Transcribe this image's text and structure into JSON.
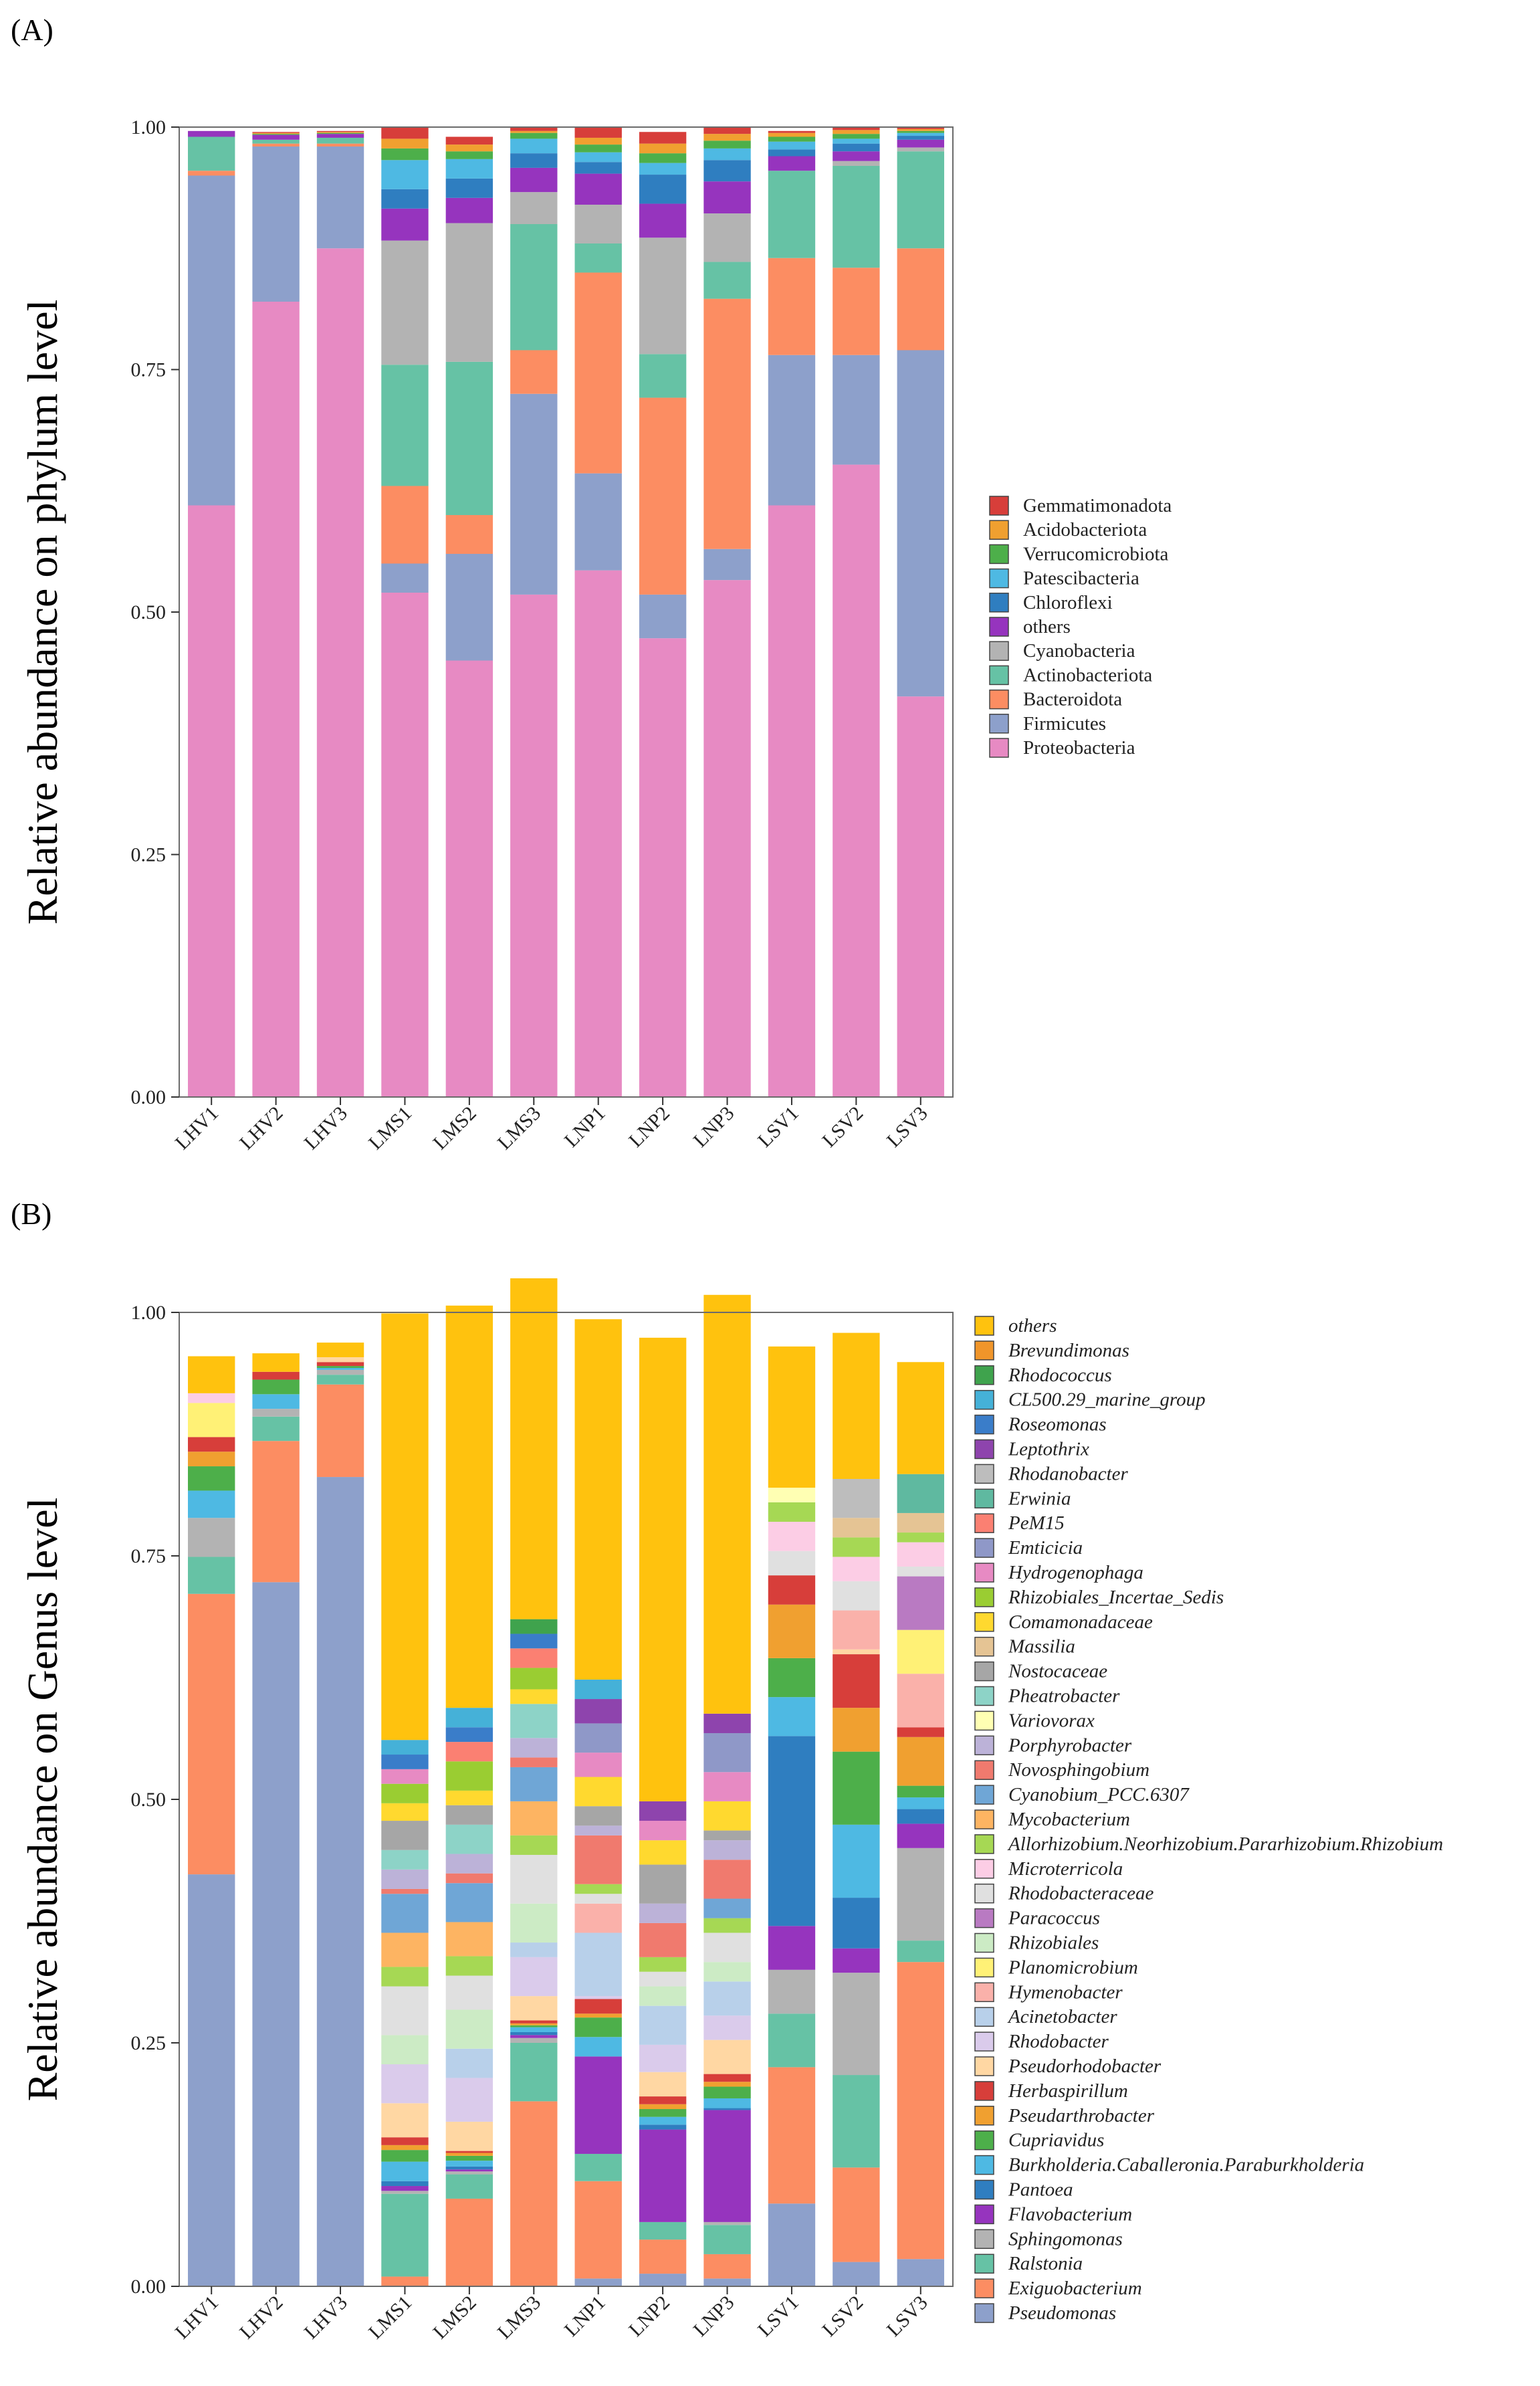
{
  "figure": {
    "panel_a_label": "(A)",
    "panel_b_label": "(B)"
  },
  "chart_data": [
    {
      "type": "bar",
      "stacked": true,
      "panel": "(A)",
      "title": "",
      "xlabel": "",
      "ylabel": "Relative abundance on phylum level",
      "ylim": [
        0,
        1
      ],
      "yticks": [
        "0.00",
        "0.25",
        "0.50",
        "0.75",
        "1.00"
      ],
      "grid": false,
      "legend_position": "right",
      "categories": [
        "LHV1",
        "LHV2",
        "LHV3",
        "LMS1",
        "LMS2",
        "LMS3",
        "LNP1",
        "LNP2",
        "LNP3",
        "LSV1",
        "LSV2",
        "LSV3"
      ],
      "series": [
        {
          "name": "Proteobacteria",
          "color": "#E78AC3",
          "values": [
            0.61,
            0.82,
            0.875,
            0.52,
            0.45,
            0.518,
            0.543,
            0.473,
            0.533,
            0.61,
            0.652,
            0.413
          ]
        },
        {
          "name": "Firmicutes",
          "color": "#8DA0CB",
          "values": [
            0.34,
            0.16,
            0.105,
            0.03,
            0.11,
            0.207,
            0.1,
            0.045,
            0.032,
            0.155,
            0.113,
            0.357
          ]
        },
        {
          "name": "Bacteroidota",
          "color": "#FC8D62",
          "values": [
            0.005,
            0.003,
            0.003,
            0.08,
            0.04,
            0.045,
            0.207,
            0.203,
            0.258,
            0.1,
            0.09,
            0.105
          ]
        },
        {
          "name": "Actinobacteriota",
          "color": "#66C2A5",
          "values": [
            0.035,
            0.004,
            0.006,
            0.125,
            0.158,
            0.13,
            0.03,
            0.045,
            0.038,
            0.09,
            0.105,
            0.1
          ]
        },
        {
          "name": "Cyanobacteria",
          "color": "#B3B3B3",
          "values": [
            0.0,
            0.0,
            0.0,
            0.128,
            0.143,
            0.033,
            0.04,
            0.12,
            0.05,
            0.0,
            0.005,
            0.004
          ]
        },
        {
          "name": "others",
          "color": "#9634BE",
          "values": [
            0.006,
            0.005,
            0.004,
            0.033,
            0.026,
            0.025,
            0.032,
            0.035,
            0.033,
            0.015,
            0.01,
            0.008
          ]
        },
        {
          "name": "Chloroflexi",
          "color": "#2F7EC0",
          "values": [
            0.0,
            0.0,
            0.0,
            0.02,
            0.02,
            0.015,
            0.012,
            0.03,
            0.022,
            0.007,
            0.008,
            0.004
          ]
        },
        {
          "name": "Patescibacteria",
          "color": "#4EB9E3",
          "values": [
            0.0,
            0.0,
            0.0,
            0.03,
            0.02,
            0.015,
            0.01,
            0.012,
            0.012,
            0.008,
            0.005,
            0.003
          ]
        },
        {
          "name": "Verrucomicrobiota",
          "color": "#4DAF4A",
          "values": [
            0.0,
            0.001,
            0.001,
            0.012,
            0.008,
            0.006,
            0.008,
            0.01,
            0.008,
            0.005,
            0.005,
            0.002
          ]
        },
        {
          "name": "Acidobacteriota",
          "color": "#F0A030",
          "values": [
            0.0,
            0.001,
            0.001,
            0.01,
            0.007,
            0.002,
            0.007,
            0.01,
            0.007,
            0.004,
            0.004,
            0.002
          ]
        },
        {
          "name": "Gemmatimonadota",
          "color": "#D73E3A",
          "values": [
            0.0,
            0.001,
            0.001,
            0.012,
            0.008,
            0.004,
            0.011,
            0.012,
            0.007,
            0.002,
            0.003,
            0.002
          ]
        }
      ]
    },
    {
      "type": "bar",
      "stacked": true,
      "panel": "(B)",
      "title": "",
      "xlabel": "",
      "ylabel": "Relative abundance on Genus level",
      "ylim": [
        0,
        1
      ],
      "yticks": [
        "0.00",
        "0.25",
        "0.50",
        "0.75",
        "1.00"
      ],
      "grid": false,
      "legend_position": "right",
      "categories": [
        "LHV1",
        "LHV2",
        "LHV3",
        "LMS1",
        "LMS2",
        "LMS3",
        "LNP1",
        "LNP2",
        "LNP3",
        "LSV1",
        "LSV2",
        "LSV3"
      ],
      "series": [
        {
          "name": "Pseudomonas",
          "color": "#8DA0CB",
          "values": [
            0.423,
            0.723,
            0.831,
            0.0,
            0.0,
            0.0,
            0.008,
            0.013,
            0.008,
            0.085,
            0.025,
            0.028
          ]
        },
        {
          "name": "Exiguobacterium",
          "color": "#FC8D62",
          "values": [
            0.288,
            0.145,
            0.095,
            0.01,
            0.09,
            0.19,
            0.1,
            0.035,
            0.025,
            0.14,
            0.097,
            0.305
          ]
        },
        {
          "name": "Ralstonia",
          "color": "#66C2A5",
          "values": [
            0.038,
            0.025,
            0.01,
            0.085,
            0.025,
            0.06,
            0.028,
            0.018,
            0.03,
            0.055,
            0.095,
            0.022
          ]
        },
        {
          "name": "Sphingomonas",
          "color": "#B3B3B3",
          "values": [
            0.04,
            0.008,
            0.005,
            0.003,
            0.003,
            0.005,
            0.0,
            0.0,
            0.003,
            0.045,
            0.105,
            0.095
          ]
        },
        {
          "name": "Flavobacterium",
          "color": "#9634BE",
          "values": [
            0.0,
            0.0,
            0.0,
            0.005,
            0.002,
            0.003,
            0.1,
            0.095,
            0.115,
            0.045,
            0.025,
            0.025
          ]
        },
        {
          "name": "Pantoea",
          "color": "#2F7EC0",
          "values": [
            0.0,
            0.0,
            0.0,
            0.005,
            0.003,
            0.003,
            0.0,
            0.005,
            0.002,
            0.195,
            0.052,
            0.015
          ]
        },
        {
          "name": "Burkholderia.Caballeronia.Paraburkholderia",
          "color": "#4EB9E3",
          "values": [
            0.028,
            0.015,
            0.002,
            0.02,
            0.006,
            0.005,
            0.02,
            0.008,
            0.01,
            0.04,
            0.075,
            0.012
          ]
        },
        {
          "name": "Cupriavidus",
          "color": "#4DAF4A",
          "values": [
            0.025,
            0.015,
            0.002,
            0.012,
            0.005,
            0.002,
            0.02,
            0.008,
            0.012,
            0.04,
            0.075,
            0.012
          ]
        },
        {
          "name": "Pseudarthrobacter",
          "color": "#F0A030",
          "values": [
            0.015,
            0.0,
            0.0,
            0.005,
            0.003,
            0.002,
            0.004,
            0.005,
            0.005,
            0.055,
            0.045,
            0.05
          ]
        },
        {
          "name": "Herbaspirillum",
          "color": "#D73E3A",
          "values": [
            0.015,
            0.008,
            0.004,
            0.008,
            0.002,
            0.003,
            0.015,
            0.008,
            0.008,
            0.03,
            0.055,
            0.01
          ]
        },
        {
          "name": "Pseudorhodobacter",
          "color": "#FFD7A3",
          "values": [
            0.0,
            0.0,
            0.005,
            0.035,
            0.03,
            0.025,
            0.0,
            0.025,
            0.035,
            0.0,
            0.005,
            0.0
          ]
        },
        {
          "name": "Rhodobacter",
          "color": "#DACBEB",
          "values": [
            0.0,
            0.0,
            0.0,
            0.04,
            0.045,
            0.04,
            0.003,
            0.028,
            0.025,
            0.0,
            0.0,
            0.0
          ]
        },
        {
          "name": "Acinetobacter",
          "color": "#B8D0EA",
          "values": [
            0.0,
            0.0,
            0.0,
            0.0,
            0.03,
            0.015,
            0.065,
            0.04,
            0.035,
            0.0,
            0.0,
            0.0
          ]
        },
        {
          "name": "Hymenobacter",
          "color": "#FAB1AA",
          "values": [
            0.0,
            0.0,
            0.0,
            0.0,
            0.0,
            0.0,
            0.03,
            0.0,
            0.0,
            0.0,
            0.04,
            0.055
          ]
        },
        {
          "name": "Planomicrobium",
          "color": "#FFF176",
          "values": [
            0.035,
            0.0,
            0.0,
            0.0,
            0.0,
            0.0,
            0.0,
            0.0,
            0.0,
            0.0,
            0.0,
            0.045
          ]
        },
        {
          "name": "Rhizobiales",
          "color": "#CCEBC5",
          "values": [
            0.0,
            0.0,
            0.0,
            0.03,
            0.04,
            0.04,
            0.0,
            0.02,
            0.02,
            0.0,
            0.0,
            0.0
          ]
        },
        {
          "name": "Paracoccus",
          "color": "#B97AC2",
          "values": [
            0.0,
            0.0,
            0.0,
            0.0,
            0.0,
            0.0,
            0.0,
            0.0,
            0.0,
            0.0,
            0.0,
            0.055
          ]
        },
        {
          "name": "Rhodobacteraceae",
          "color": "#E0E0E0",
          "values": [
            0.0,
            0.0,
            0.0,
            0.05,
            0.035,
            0.05,
            0.01,
            0.015,
            0.03,
            0.025,
            0.03,
            0.01
          ]
        },
        {
          "name": "Microterricola",
          "color": "#FCCDE5",
          "values": [
            0.01,
            0.0,
            0.0,
            0.0,
            0.0,
            0.0,
            0.0,
            0.0,
            0.0,
            0.03,
            0.025,
            0.025
          ]
        },
        {
          "name": "Allorhizobium.Neorhizobium.Pararhizobium.Rhizobium",
          "color": "#A6D854",
          "values": [
            0.0,
            0.0,
            0.0,
            0.02,
            0.02,
            0.02,
            0.01,
            0.015,
            0.015,
            0.02,
            0.02,
            0.01
          ]
        },
        {
          "name": "Mycobacterium",
          "color": "#FDB462",
          "values": [
            0.0,
            0.0,
            0.0,
            0.035,
            0.035,
            0.035,
            0.0,
            0.0,
            0.0,
            0.0,
            0.0,
            0.0
          ]
        },
        {
          "name": "Cyanobium_PCC.6307",
          "color": "#6FA6D6",
          "values": [
            0.0,
            0.0,
            0.0,
            0.04,
            0.04,
            0.035,
            0.0,
            0.0,
            0.02,
            0.0,
            0.0,
            0.0
          ]
        },
        {
          "name": "Novosphingobium",
          "color": "#F07A6E",
          "values": [
            0.0,
            0.0,
            0.0,
            0.005,
            0.01,
            0.01,
            0.05,
            0.035,
            0.04,
            0.0,
            0.0,
            0.0
          ]
        },
        {
          "name": "Porphyrobacter",
          "color": "#BCB2D8",
          "values": [
            0.0,
            0.0,
            0.0,
            0.02,
            0.02,
            0.02,
            0.01,
            0.02,
            0.02,
            0.0,
            0.0,
            0.0
          ]
        },
        {
          "name": "Variovorax",
          "color": "#FFFFB3",
          "values": [
            0.0,
            0.0,
            0.0,
            0.0,
            0.0,
            0.0,
            0.0,
            0.0,
            0.0,
            0.015,
            0.0,
            0.0
          ]
        },
        {
          "name": "Pheatrobacter",
          "color": "#8DD3C7",
          "values": [
            0.0,
            0.0,
            0.0,
            0.02,
            0.03,
            0.035,
            0.0,
            0.0,
            0.0,
            0.0,
            0.0,
            0.0
          ]
        },
        {
          "name": "Nostocaceae",
          "color": "#A6A6A6",
          "values": [
            0.0,
            0.0,
            0.0,
            0.03,
            0.02,
            0.0,
            0.02,
            0.04,
            0.01,
            0.0,
            0.0,
            0.0
          ]
        },
        {
          "name": "Massilia",
          "color": "#E5C494",
          "values": [
            0.0,
            0.0,
            0.0,
            0.0,
            0.0,
            0.0,
            0.0,
            0.0,
            0.0,
            0.0,
            0.02,
            0.02
          ]
        },
        {
          "name": "Comamonadaceae",
          "color": "#FFD92F",
          "values": [
            0.0,
            0.0,
            0.0,
            0.018,
            0.015,
            0.015,
            0.03,
            0.025,
            0.03,
            0.0,
            0.0,
            0.0
          ]
        },
        {
          "name": "Rhizobiales_Incertae_Sedis",
          "color": "#9ACD32",
          "values": [
            0.0,
            0.0,
            0.0,
            0.02,
            0.03,
            0.022,
            0.0,
            0.0,
            0.0,
            0.0,
            0.0,
            0.0
          ]
        },
        {
          "name": "Hydrogenophaga",
          "color": "#E78AC3",
          "values": [
            0.0,
            0.0,
            0.0,
            0.015,
            0.0,
            0.0,
            0.025,
            0.02,
            0.03,
            0.0,
            0.0,
            0.0
          ]
        },
        {
          "name": "Emticicia",
          "color": "#8F98C8",
          "values": [
            0.0,
            0.0,
            0.0,
            0.0,
            0.0,
            0.0,
            0.03,
            0.0,
            0.04,
            0.0,
            0.0,
            0.0
          ]
        },
        {
          "name": "PeM15",
          "color": "#FB8072",
          "values": [
            0.0,
            0.0,
            0.0,
            0.0,
            0.02,
            0.02,
            0.0,
            0.0,
            0.0,
            0.0,
            0.0,
            0.0
          ]
        },
        {
          "name": "Erwinia",
          "color": "#5FB9A0",
          "values": [
            0.0,
            0.0,
            0.0,
            0.0,
            0.0,
            0.0,
            0.0,
            0.0,
            0.0,
            0.0,
            0.0,
            0.04
          ]
        },
        {
          "name": "Rhodanobacter",
          "color": "#BDBDBD",
          "values": [
            0.0,
            0.0,
            0.0,
            0.0,
            0.0,
            0.0,
            0.0,
            0.0,
            0.0,
            0.0,
            0.04,
            0.0
          ]
        },
        {
          "name": "Leptothrix",
          "color": "#8E44AD",
          "values": [
            0.0,
            0.0,
            0.0,
            0.0,
            0.0,
            0.0,
            0.025,
            0.02,
            0.02,
            0.0,
            0.0,
            0.0
          ]
        },
        {
          "name": "Roseomonas",
          "color": "#3A7DC9",
          "values": [
            0.0,
            0.0,
            0.0,
            0.015,
            0.015,
            0.015,
            0.0,
            0.0,
            0.0,
            0.0,
            0.0,
            0.0
          ]
        },
        {
          "name": "CL500.29_marine_group",
          "color": "#45B1D8",
          "values": [
            0.0,
            0.0,
            0.0,
            0.015,
            0.02,
            0.0,
            0.02,
            0.0,
            0.0,
            0.0,
            0.0,
            0.0
          ]
        },
        {
          "name": "Rhodococcus",
          "color": "#3FA34D",
          "values": [
            0.0,
            0.0,
            0.0,
            0.0,
            0.0,
            0.015,
            0.0,
            0.0,
            0.0,
            0.0,
            0.0,
            0.0
          ]
        },
        {
          "name": "Brevundimonas",
          "color": "#F0952A",
          "values": [
            0.0,
            0.0,
            0.0,
            0.0,
            0.0,
            0.0,
            0.0,
            0.0,
            0.0,
            0.0,
            0.0,
            0.0
          ]
        },
        {
          "name": "others",
          "color": "#FFC20E",
          "values": [
            0.038,
            0.019,
            0.015,
            0.438,
            0.413,
            0.35,
            0.37,
            0.476,
            0.43,
            0.145,
            0.15,
            0.115
          ]
        }
      ]
    }
  ]
}
